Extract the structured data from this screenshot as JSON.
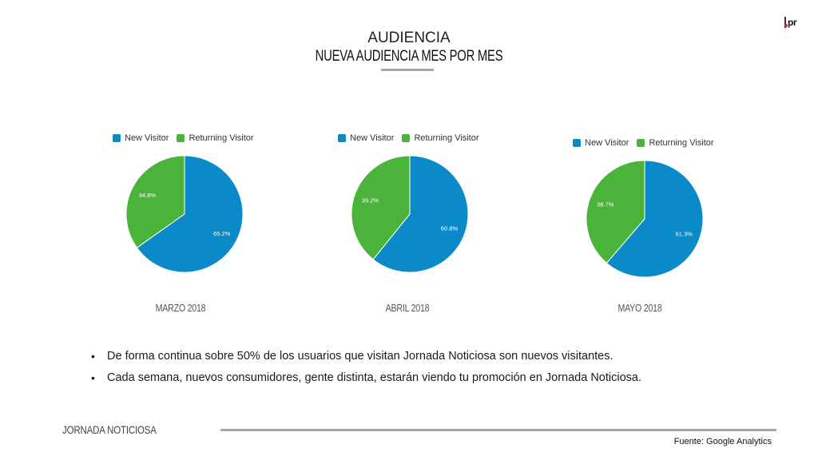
{
  "header": {
    "logo_text": "pr",
    "title": "AUDIENCIA",
    "subtitle": "NUEVA AUDIENCIA MES POR MES"
  },
  "colors": {
    "new_visitor": "#0b8ac9",
    "returning_visitor": "#4ab43a"
  },
  "chart_data": [
    {
      "type": "pie",
      "title": "MARZO 2018",
      "categories": [
        "New Visitor",
        "Returning Visitor"
      ],
      "values": [
        65.2,
        34.8
      ],
      "labels": [
        "65.2%",
        "34.8%"
      ],
      "legend": "top-left"
    },
    {
      "type": "pie",
      "title": "ABRIL 2018",
      "categories": [
        "New Visitor",
        "Returning Visitor"
      ],
      "values": [
        60.8,
        39.2
      ],
      "labels": [
        "60.8%",
        "39.2%"
      ],
      "legend": "top-left"
    },
    {
      "type": "pie",
      "title": "MAYO 2018",
      "categories": [
        "New Visitor",
        "Returning Visitor"
      ],
      "values": [
        61.3,
        38.7
      ],
      "labels": [
        "61.3%",
        "38.7%"
      ],
      "legend": "top-left"
    }
  ],
  "bullets": [
    "De forma continua sobre 50% de los usuarios que visitan Jornada Noticiosa son nuevos  visitantes.",
    "Cada semana, nuevos consumidores, gente distinta, estarán viendo tu promoción en Jornada Noticiosa."
  ],
  "footer": {
    "brand": "JORNADA NOTICIOSA",
    "source": "Fuente: Google Analytics"
  }
}
